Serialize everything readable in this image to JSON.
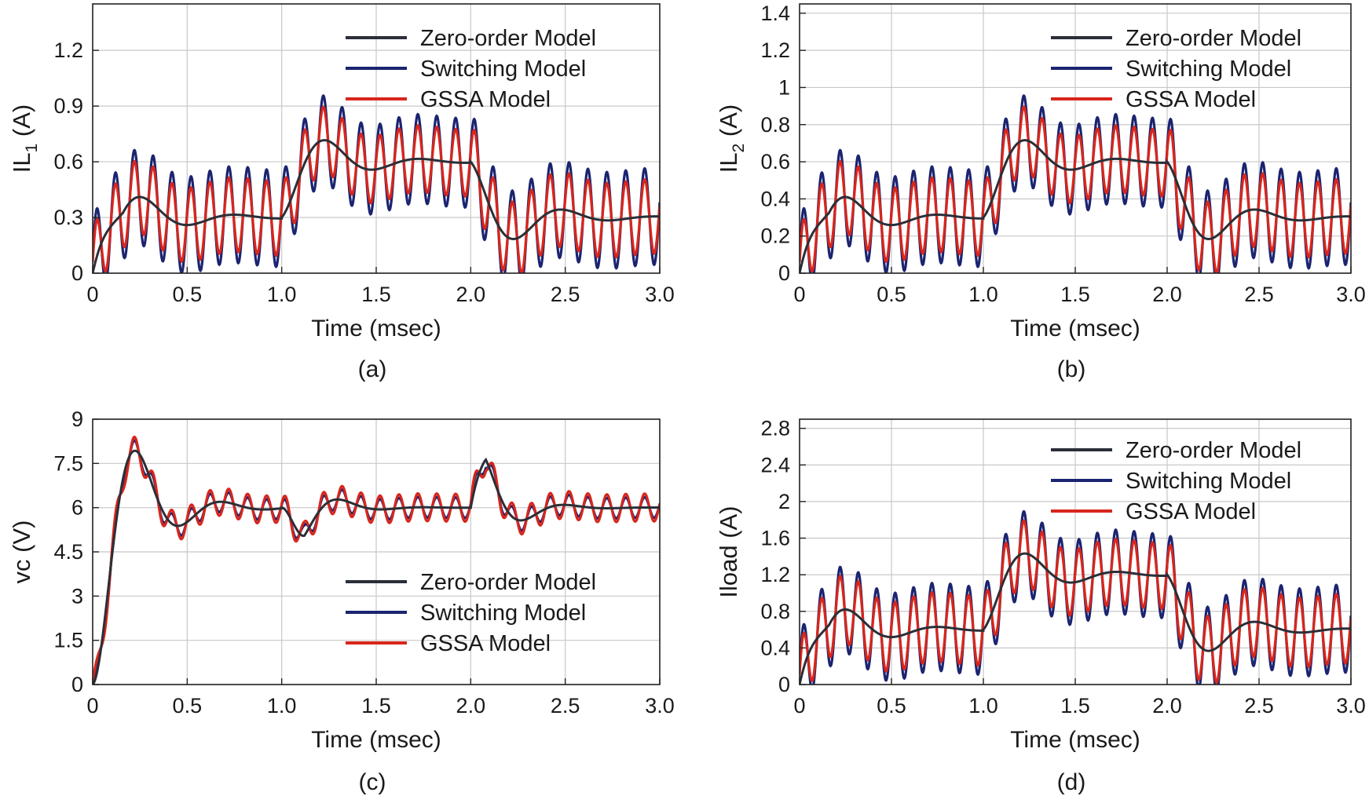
{
  "colors": {
    "zero_order": "#2a2f38",
    "switching": "#1b2470",
    "gssa": "#d8261c",
    "grid": "#c8c8c8",
    "axes": "#222222"
  },
  "chart_data": [
    {
      "type": "line",
      "panel_label": "(a)",
      "xlabel": "Time (msec)",
      "ylabel_main": "IL",
      "ylabel_sub": "1",
      "ylabel_tail": " (A)",
      "xlim": [
        0,
        3.0
      ],
      "ylim": [
        0,
        1.45
      ],
      "xticks": [
        0,
        0.5,
        1.0,
        1.5,
        2.0,
        2.5,
        3.0
      ],
      "xtick_labels": [
        "0",
        "0.5",
        "1.0",
        "1.5",
        "2.0",
        "2.5",
        "3.0"
      ],
      "yticks": [
        0,
        0.3,
        0.6,
        0.9,
        1.2
      ],
      "ytick_labels": [
        "0",
        "0.3",
        "0.6",
        "0.9",
        "1.2"
      ],
      "grid": true,
      "legend_position": "top-right",
      "series": [
        {
          "name": "Zero-order Model",
          "key": "zero_order",
          "segments": [
            {
              "t0": 0,
              "t1": 1.0,
              "from": 0,
              "to": 0.3,
              "a": 0.6,
              "tau": 0.25,
              "f": 2.0,
              "rise": true
            },
            {
              "t0": 1.0,
              "t1": 2.0,
              "from": 0.3,
              "to": 0.6,
              "a": 0.3,
              "tau": 0.25,
              "f": 2.0
            },
            {
              "t0": 2.0,
              "t1": 3.0,
              "from": 0.6,
              "to": 0.3,
              "a": 0.3,
              "tau": 0.25,
              "f": 2.0
            }
          ]
        },
        {
          "name": "Switching Model",
          "key": "switching",
          "segments": [
            {
              "t0": 0,
              "t1": 1.0,
              "from": 0,
              "to": 0.3,
              "a": 0.6,
              "tau": 0.25,
              "f": 2.0,
              "rise": true,
              "amp": 0.24,
              "rf": 10,
              "offset": 0.02
            },
            {
              "t0": 1.0,
              "t1": 2.0,
              "from": 0.3,
              "to": 0.6,
              "a": 0.3,
              "tau": 0.25,
              "f": 2.0,
              "amp": 0.22,
              "rf": 10,
              "offset": 0.02
            },
            {
              "t0": 2.0,
              "t1": 3.0,
              "from": 0.6,
              "to": 0.3,
              "a": 0.3,
              "tau": 0.25,
              "f": 2.0,
              "amp": 0.24,
              "rf": 10,
              "offset": 0.02
            }
          ]
        },
        {
          "name": "GSSA Model",
          "key": "gssa",
          "segments": [
            {
              "t0": 0,
              "t1": 1.0,
              "from": 0,
              "to": 0.3,
              "a": 0.6,
              "tau": 0.25,
              "f": 2.0,
              "rise": true,
              "amp": 0.2,
              "rf": 10,
              "offset": 0.0
            },
            {
              "t0": 1.0,
              "t1": 2.0,
              "from": 0.3,
              "to": 0.6,
              "a": 0.3,
              "tau": 0.25,
              "f": 2.0,
              "amp": 0.18,
              "rf": 10,
              "offset": 0.0
            },
            {
              "t0": 2.0,
              "t1": 3.0,
              "from": 0.6,
              "to": 0.3,
              "a": 0.3,
              "tau": 0.25,
              "f": 2.0,
              "amp": 0.2,
              "rf": 10,
              "offset": 0.0
            }
          ]
        }
      ]
    },
    {
      "type": "line",
      "panel_label": "(b)",
      "xlabel": "Time (msec)",
      "ylabel_main": "IL",
      "ylabel_sub": "2",
      "ylabel_tail": " (A)",
      "xlim": [
        0,
        3.0
      ],
      "ylim": [
        0,
        1.45
      ],
      "xticks": [
        0,
        0.5,
        1.0,
        1.5,
        2.0,
        2.5,
        3.0
      ],
      "xtick_labels": [
        "0",
        "0.5",
        "1.0",
        "1.5",
        "2.0",
        "2.5",
        "3.0"
      ],
      "yticks": [
        0,
        0.2,
        0.4,
        0.6,
        0.8,
        1.0,
        1.2,
        1.4
      ],
      "ytick_labels": [
        "0",
        "0.2",
        "0.4",
        "0.6",
        "0.8",
        "1",
        "1.2",
        "1.4"
      ],
      "grid": true,
      "legend_position": "top-right",
      "series": [
        {
          "name": "Zero-order Model",
          "key": "zero_order",
          "segments": [
            {
              "t0": 0,
              "t1": 1.0,
              "from": 0,
              "to": 0.3,
              "a": 0.6,
              "tau": 0.25,
              "f": 2.0,
              "rise": true
            },
            {
              "t0": 1.0,
              "t1": 2.0,
              "from": 0.3,
              "to": 0.6,
              "a": 0.3,
              "tau": 0.25,
              "f": 2.0
            },
            {
              "t0": 2.0,
              "t1": 3.0,
              "from": 0.6,
              "to": 0.3,
              "a": 0.3,
              "tau": 0.25,
              "f": 2.0
            }
          ]
        },
        {
          "name": "Switching Model",
          "key": "switching",
          "segments": [
            {
              "t0": 0,
              "t1": 1.0,
              "from": 0,
              "to": 0.3,
              "a": 0.6,
              "tau": 0.25,
              "f": 2.0,
              "rise": true,
              "amp": 0.24,
              "rf": 10,
              "offset": 0.02
            },
            {
              "t0": 1.0,
              "t1": 2.0,
              "from": 0.3,
              "to": 0.6,
              "a": 0.3,
              "tau": 0.25,
              "f": 2.0,
              "amp": 0.22,
              "rf": 10,
              "offset": 0.02
            },
            {
              "t0": 2.0,
              "t1": 3.0,
              "from": 0.6,
              "to": 0.3,
              "a": 0.3,
              "tau": 0.25,
              "f": 2.0,
              "amp": 0.24,
              "rf": 10,
              "offset": 0.02
            }
          ]
        },
        {
          "name": "GSSA Model",
          "key": "gssa",
          "segments": [
            {
              "t0": 0,
              "t1": 1.0,
              "from": 0,
              "to": 0.3,
              "a": 0.6,
              "tau": 0.25,
              "f": 2.0,
              "rise": true,
              "amp": 0.2,
              "rf": 10,
              "offset": 0.0
            },
            {
              "t0": 1.0,
              "t1": 2.0,
              "from": 0.3,
              "to": 0.6,
              "a": 0.3,
              "tau": 0.25,
              "f": 2.0,
              "amp": 0.18,
              "rf": 10,
              "offset": 0.0
            },
            {
              "t0": 2.0,
              "t1": 3.0,
              "from": 0.6,
              "to": 0.3,
              "a": 0.3,
              "tau": 0.25,
              "f": 2.0,
              "amp": 0.2,
              "rf": 10,
              "offset": 0.0
            }
          ]
        }
      ]
    },
    {
      "type": "line",
      "panel_label": "(c)",
      "xlabel": "Time (msec)",
      "ylabel_main": "vc (V)",
      "ylabel_sub": "",
      "ylabel_tail": "",
      "xlim": [
        0,
        3.0
      ],
      "ylim": [
        0,
        9
      ],
      "xticks": [
        0,
        0.5,
        1.0,
        1.5,
        2.0,
        2.5,
        3.0
      ],
      "xtick_labels": [
        "0",
        "0.5",
        "1.0",
        "1.5",
        "2.0",
        "2.5",
        "3.0"
      ],
      "yticks": [
        0,
        1.5,
        3,
        4.5,
        6,
        7.5,
        9
      ],
      "ytick_labels": [
        "0",
        "1.5",
        "3",
        "4.5",
        "6",
        "7.5",
        "9"
      ],
      "grid": true,
      "legend_position": "bottom-right",
      "series": [
        {
          "name": "Zero-order Model",
          "key": "zero_order",
          "segments": [
            {
              "t0": 0,
              "t1": 1.0,
              "from": 0,
              "to": 6.0,
              "a": 3.2,
              "tau": 0.2,
              "f": 2.2,
              "rise": true
            },
            {
              "t0": 1.0,
              "t1": 2.0,
              "from": 6.0,
              "to": 6.0,
              "a": 2.2,
              "tau": 0.15,
              "f": 2.2,
              "dip": true
            },
            {
              "t0": 2.0,
              "t1": 3.0,
              "from": 6.0,
              "to": 6.0,
              "a": 2.8,
              "tau": 0.15,
              "f": 2.2,
              "bump": true
            }
          ]
        },
        {
          "name": "Switching Model",
          "key": "switching",
          "segments": [
            {
              "t0": 0,
              "t1": 1.0,
              "from": 0,
              "to": 6.0,
              "a": 3.2,
              "tau": 0.2,
              "f": 2.2,
              "rise": true,
              "amp": 0.45,
              "rf": 10,
              "offset": -0.1
            },
            {
              "t0": 1.0,
              "t1": 2.0,
              "from": 6.0,
              "to": 6.0,
              "a": 2.2,
              "tau": 0.15,
              "f": 2.2,
              "dip": true,
              "amp": 0.45,
              "rf": 10,
              "offset": -0.1
            },
            {
              "t0": 2.0,
              "t1": 3.0,
              "from": 6.0,
              "to": 6.0,
              "a": 2.8,
              "tau": 0.15,
              "f": 2.2,
              "bump": true,
              "amp": 0.45,
              "rf": 10,
              "offset": -0.1
            }
          ]
        },
        {
          "name": "GSSA Model",
          "key": "gssa",
          "segments": [
            {
              "t0": 0,
              "t1": 1.0,
              "from": 0,
              "to": 6.0,
              "a": 3.2,
              "tau": 0.2,
              "f": 2.2,
              "rise": true,
              "amp": 0.42,
              "rf": 10,
              "offset": 0.05
            },
            {
              "t0": 1.0,
              "t1": 2.0,
              "from": 6.0,
              "to": 6.0,
              "a": 2.2,
              "tau": 0.15,
              "f": 2.2,
              "dip": true,
              "amp": 0.42,
              "rf": 10,
              "offset": 0.05
            },
            {
              "t0": 2.0,
              "t1": 3.0,
              "from": 6.0,
              "to": 6.0,
              "a": 2.8,
              "tau": 0.15,
              "f": 2.2,
              "bump": true,
              "amp": 0.42,
              "rf": 10,
              "offset": 0.05
            }
          ]
        }
      ]
    },
    {
      "type": "line",
      "panel_label": "(d)",
      "xlabel": "Time (msec)",
      "ylabel_main": "Iload (A)",
      "ylabel_sub": "",
      "ylabel_tail": "",
      "xlim": [
        0,
        3.0
      ],
      "ylim": [
        0,
        2.9
      ],
      "xticks": [
        0,
        0.5,
        1.0,
        1.5,
        2.0,
        2.5,
        3.0
      ],
      "xtick_labels": [
        "0",
        "0.5",
        "1.0",
        "1.5",
        "2.0",
        "2.5",
        "3.0"
      ],
      "yticks": [
        0,
        0.4,
        0.8,
        1.2,
        1.6,
        2.0,
        2.4,
        2.8
      ],
      "ytick_labels": [
        "0",
        "0.4",
        "0.8",
        "1.2",
        "1.6",
        "2",
        "2.4",
        "2.8"
      ],
      "grid": true,
      "legend_position": "top-right",
      "series": [
        {
          "name": "Zero-order Model",
          "key": "zero_order",
          "segments": [
            {
              "t0": 0,
              "t1": 1.0,
              "from": 0,
              "to": 0.6,
              "a": 1.2,
              "tau": 0.25,
              "f": 2.0,
              "rise": true
            },
            {
              "t0": 1.0,
              "t1": 2.0,
              "from": 0.6,
              "to": 1.2,
              "a": 0.6,
              "tau": 0.25,
              "f": 2.0
            },
            {
              "t0": 2.0,
              "t1": 3.0,
              "from": 1.2,
              "to": 0.6,
              "a": 0.6,
              "tau": 0.25,
              "f": 2.0
            }
          ]
        },
        {
          "name": "Switching Model",
          "key": "switching",
          "segments": [
            {
              "t0": 0,
              "t1": 1.0,
              "from": 0,
              "to": 0.6,
              "a": 1.2,
              "tau": 0.25,
              "f": 2.0,
              "rise": true,
              "amp": 0.46,
              "rf": 10,
              "offset": 0.02
            },
            {
              "t0": 1.0,
              "t1": 2.0,
              "from": 0.6,
              "to": 1.2,
              "a": 0.6,
              "tau": 0.25,
              "f": 2.0,
              "amp": 0.44,
              "rf": 10,
              "offset": 0.02
            },
            {
              "t0": 2.0,
              "t1": 3.0,
              "from": 1.2,
              "to": 0.6,
              "a": 0.6,
              "tau": 0.25,
              "f": 2.0,
              "amp": 0.46,
              "rf": 10,
              "offset": 0.02
            }
          ]
        },
        {
          "name": "GSSA Model",
          "key": "gssa",
          "segments": [
            {
              "t0": 0,
              "t1": 1.0,
              "from": 0,
              "to": 0.6,
              "a": 1.2,
              "tau": 0.25,
              "f": 2.0,
              "rise": true,
              "amp": 0.38,
              "rf": 10,
              "offset": 0.0
            },
            {
              "t0": 1.0,
              "t1": 2.0,
              "from": 0.6,
              "to": 1.2,
              "a": 0.6,
              "tau": 0.25,
              "f": 2.0,
              "amp": 0.36,
              "rf": 10,
              "offset": 0.0
            },
            {
              "t0": 2.0,
              "t1": 3.0,
              "from": 1.2,
              "to": 0.6,
              "a": 0.6,
              "tau": 0.25,
              "f": 2.0,
              "amp": 0.38,
              "rf": 10,
              "offset": 0.0
            }
          ]
        }
      ]
    }
  ]
}
